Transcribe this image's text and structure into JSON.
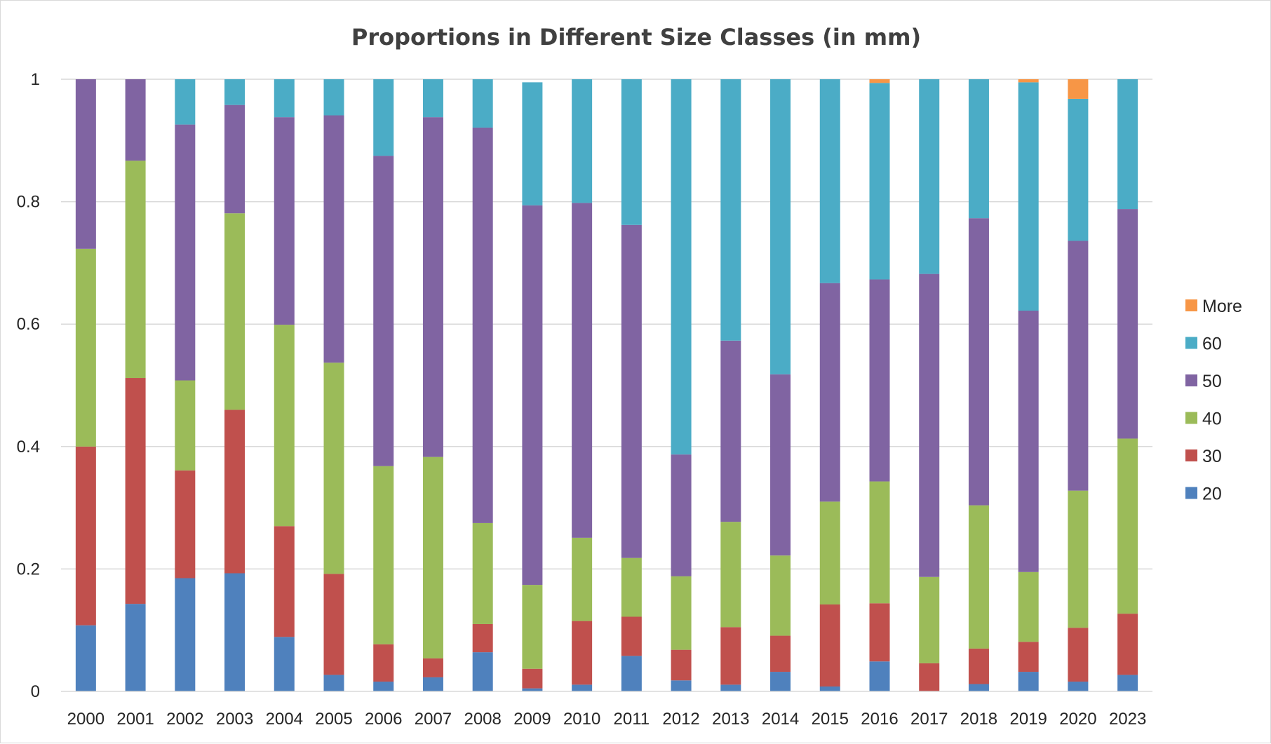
{
  "chart_data": {
    "type": "bar",
    "stacked": true,
    "title": "Proportions in Different Size Classes (in mm)",
    "xlabel": "",
    "ylabel": "",
    "ylim": [
      0,
      1
    ],
    "yticks": [
      {
        "value": 0,
        "label": "0"
      },
      {
        "value": 0.2,
        "label": "0.2"
      },
      {
        "value": 0.4,
        "label": "0.4"
      },
      {
        "value": 0.6,
        "label": "0.6"
      },
      {
        "value": 0.8,
        "label": "0.8"
      },
      {
        "value": 1,
        "label": "1"
      }
    ],
    "grid": true,
    "legend_position": "right",
    "categories": [
      "2000",
      "2001",
      "2002",
      "2003",
      "2004",
      "2005",
      "2006",
      "2007",
      "2008",
      "2009",
      "2010",
      "2011",
      "2012",
      "2013",
      "2014",
      "2015",
      "2016",
      "2017",
      "2018",
      "2019",
      "2020",
      "2023"
    ],
    "series": [
      {
        "name": "20",
        "color": "#4f81bd",
        "values": [
          0.108,
          0.143,
          0.185,
          0.193,
          0.089,
          0.027,
          0.016,
          0.023,
          0.064,
          0.005,
          0.011,
          0.058,
          0.018,
          0.011,
          0.032,
          0.008,
          0.049,
          0.0,
          0.012,
          0.032,
          0.016,
          0.027
        ]
      },
      {
        "name": "30",
        "color": "#c0504d",
        "values": [
          0.292,
          0.369,
          0.176,
          0.267,
          0.181,
          0.165,
          0.061,
          0.031,
          0.046,
          0.032,
          0.104,
          0.064,
          0.05,
          0.094,
          0.059,
          0.134,
          0.095,
          0.046,
          0.058,
          0.049,
          0.088,
          0.1
        ]
      },
      {
        "name": "40",
        "color": "#9bbb59",
        "values": [
          0.323,
          0.355,
          0.147,
          0.321,
          0.329,
          0.345,
          0.291,
          0.329,
          0.165,
          0.137,
          0.136,
          0.096,
          0.12,
          0.172,
          0.131,
          0.168,
          0.199,
          0.141,
          0.234,
          0.114,
          0.224,
          0.286
        ]
      },
      {
        "name": "50",
        "color": "#8064a2",
        "values": [
          0.277,
          0.133,
          0.418,
          0.177,
          0.339,
          0.404,
          0.507,
          0.555,
          0.646,
          0.62,
          0.547,
          0.544,
          0.199,
          0.296,
          0.296,
          0.357,
          0.33,
          0.495,
          0.469,
          0.427,
          0.408,
          0.375
        ]
      },
      {
        "name": "60",
        "color": "#4bacc6",
        "values": [
          0.0,
          0.0,
          0.074,
          0.042,
          0.062,
          0.059,
          0.125,
          0.062,
          0.079,
          0.201,
          0.202,
          0.238,
          0.613,
          0.427,
          0.482,
          0.333,
          0.321,
          0.318,
          0.227,
          0.373,
          0.232,
          0.212
        ]
      },
      {
        "name": "More",
        "color": "#f79646",
        "values": [
          0.0,
          0.0,
          0.0,
          0.0,
          0.0,
          0.0,
          0.0,
          0.0,
          0.0,
          0.0,
          0.0,
          0.0,
          0.0,
          0.0,
          0.0,
          0.0,
          0.006,
          0.0,
          0.0,
          0.005,
          0.032,
          0.0
        ]
      }
    ]
  }
}
